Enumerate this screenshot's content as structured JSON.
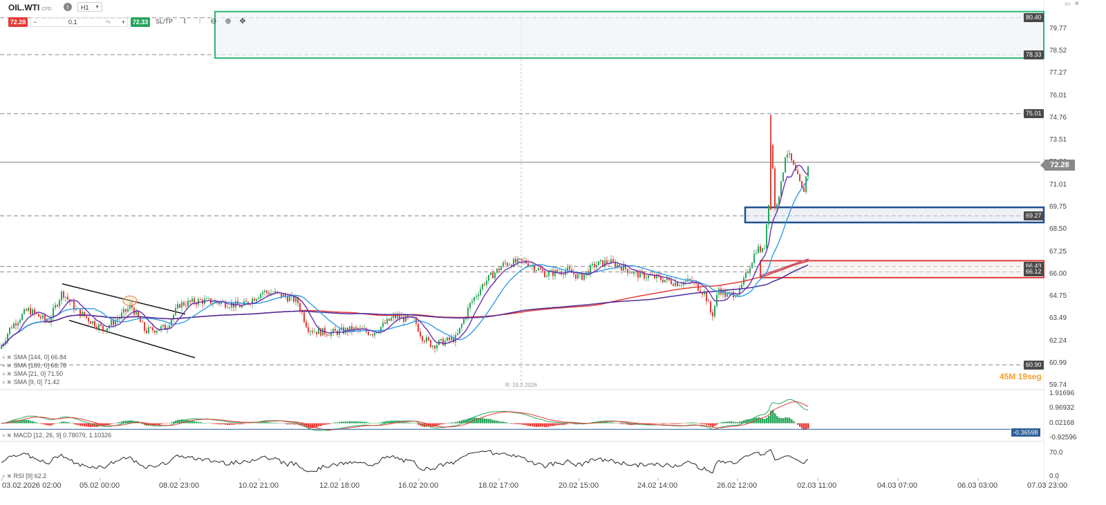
{
  "toolbar": {
    "symbol": "OIL.WTI",
    "symbol_type": "CFD",
    "timeframe": "H1",
    "sell_price": "72.28",
    "buy_price": "72.33",
    "quantity": "0.1",
    "sltp_label": "SL/TP",
    "tools": [
      "line-chart-icon",
      "candles-icon",
      "zoom-out-icon",
      "zoom-in-icon",
      "pan-icon"
    ]
  },
  "price_axis": {
    "labels": [
      "79.77",
      "78.52",
      "77.27",
      "76.01",
      "74.76",
      "73.51",
      "72.26",
      "71.01",
      "69.75",
      "68.50",
      "67.25",
      "66.00",
      "64.75",
      "63.49",
      "62.24",
      "60.99",
      "59.74"
    ],
    "current_price": "72.28"
  },
  "level_tags": [
    "80.40",
    "78.33",
    "75.01",
    "69.27",
    "66.43",
    "66.12",
    "60.90"
  ],
  "time_axis": [
    "03.02.2026 02:00",
    "05.02 00:00",
    "08.02 23:00",
    "10.02 21:00",
    "12.02 18:00",
    "16.02 20:00",
    "18.02 17:00",
    "20.02 15:00",
    "24.02 14:00",
    "26.02 12:00",
    "02.03 11:00",
    "04.03 07:00",
    "06.03 03:00",
    "07.03 23:00"
  ],
  "crosshair_date": "R: 19.2.2026",
  "candle_timer": {
    "minutes": "45",
    "min_unit": "M",
    "seconds": "19",
    "sec_unit": "seg"
  },
  "indicators": {
    "sma144": "SMA [144, 0] 66.84",
    "sma169": "SMA [169, 0] 66.78",
    "sma21": "SMA [21, 0] 71.50",
    "sma9": "SMA [9, 0] 71.42",
    "macd": "MACD [12, 26, 9] 0.78079, 1.10326",
    "rsi": "RSI [9] 62.2"
  },
  "macd_axis": [
    "1.91696",
    "0.96932",
    "0.02168",
    "-0.92596"
  ],
  "macd_current": "-0.36598",
  "rsi_axis": [
    "70.0",
    "0.0"
  ],
  "colors": {
    "bull": "#26a65b",
    "bear": "#e53935",
    "zone_green": "#2bb673",
    "zone_blue": "#1e4f8f",
    "zone_red": "#e53935",
    "sma_red": "#e53935",
    "sma_purple": "#4b2a9a",
    "sma_blue": "#2f9be3",
    "sma_violet": "#6a2fb0"
  }
}
